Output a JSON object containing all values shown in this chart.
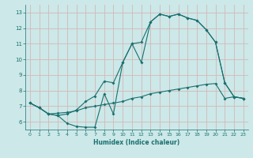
{
  "xlabel": "Humidex (Indice chaleur)",
  "bg_color": "#cce8e8",
  "line_color": "#1a7070",
  "grid_color": "#d4b8b8",
  "xlim": [
    -0.5,
    23.5
  ],
  "ylim": [
    5.5,
    13.5
  ],
  "xticks": [
    0,
    1,
    2,
    3,
    4,
    5,
    6,
    7,
    8,
    9,
    10,
    11,
    12,
    13,
    14,
    15,
    16,
    17,
    18,
    19,
    20,
    21,
    22,
    23
  ],
  "yticks": [
    6,
    7,
    8,
    9,
    10,
    11,
    12,
    13
  ],
  "line1_x": [
    0,
    1,
    2,
    3,
    4,
    5,
    6,
    7,
    8,
    9,
    10,
    11,
    12,
    13,
    14,
    15,
    16,
    17,
    18,
    19,
    20,
    21,
    22,
    23
  ],
  "line1_y": [
    7.2,
    6.9,
    6.5,
    6.4,
    5.9,
    5.7,
    5.65,
    5.65,
    7.8,
    6.5,
    9.8,
    11.0,
    9.8,
    12.4,
    12.9,
    12.75,
    12.9,
    12.65,
    12.5,
    11.9,
    11.1,
    8.5,
    7.6,
    7.5
  ],
  "line2_x": [
    0,
    1,
    2,
    3,
    4,
    5,
    6,
    7,
    8,
    9,
    10,
    11,
    12,
    13,
    14,
    15,
    16,
    17,
    18,
    19,
    20,
    21,
    22,
    23
  ],
  "line2_y": [
    7.2,
    6.9,
    6.5,
    6.55,
    6.6,
    6.7,
    6.9,
    7.0,
    7.1,
    7.2,
    7.3,
    7.5,
    7.6,
    7.8,
    7.9,
    8.0,
    8.1,
    8.2,
    8.3,
    8.4,
    8.45,
    7.5,
    7.6,
    7.5
  ],
  "line3_x": [
    0,
    1,
    2,
    3,
    4,
    5,
    6,
    7,
    8,
    9,
    10,
    11,
    12,
    13,
    14,
    15,
    16,
    17,
    18,
    19,
    20,
    21,
    22,
    23
  ],
  "line3_y": [
    7.2,
    6.9,
    6.5,
    6.4,
    6.5,
    6.75,
    7.3,
    7.65,
    8.6,
    8.5,
    9.8,
    11.0,
    11.1,
    12.4,
    12.9,
    12.75,
    12.9,
    12.65,
    12.5,
    11.9,
    11.1,
    8.5,
    7.6,
    7.5
  ]
}
